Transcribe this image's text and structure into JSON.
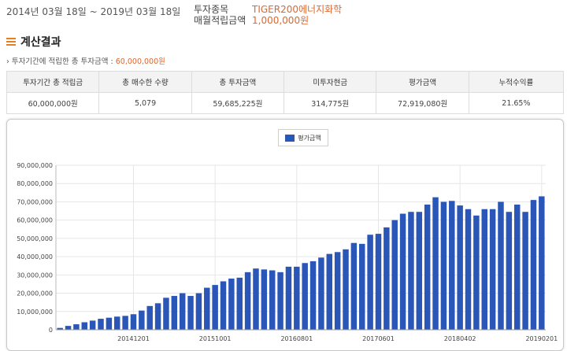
{
  "header": {
    "period": "2014년 03월 18일 ~ 2019년 03월 18일",
    "fund_label": "투자종목",
    "fund_value": "TIGER200에너지화학",
    "monthly_label": "매월적립금액",
    "monthly_value": "1,000,000원"
  },
  "section": {
    "title": "계산결과",
    "total_text": "투자기간에 적립한 총 투자금액 : ",
    "total_value": "60,000,000원"
  },
  "table": {
    "headers": [
      "투자기간 총 적립금",
      "총 매수한 수량",
      "총 투자금액",
      "미투자현금",
      "평가금액",
      "누적수익률"
    ],
    "values": [
      "60,000,000원",
      "5,079",
      "59,685,225원",
      "314,775원",
      "72,919,080원",
      "21.65%"
    ]
  },
  "colors": {
    "bar": "#2a56b8",
    "accent": "#e0662b"
  },
  "chart_data": {
    "type": "bar",
    "legend": "평가금액",
    "legend_position": "top-center",
    "grid": true,
    "ylim": [
      0,
      90000000
    ],
    "yticks": [
      "0",
      "10,000,000",
      "20,000,000",
      "30,000,000",
      "40,000,000",
      "50,000,000",
      "60,000,000",
      "70,000,000",
      "80,000,000",
      "90,000,000"
    ],
    "xticks": [
      {
        "label": "20141201",
        "index": 9
      },
      {
        "label": "20151001",
        "index": 19
      },
      {
        "label": "20160801",
        "index": 29
      },
      {
        "label": "20170601",
        "index": 39
      },
      {
        "label": "20180402",
        "index": 49
      },
      {
        "label": "20190201",
        "index": 59
      }
    ],
    "series": [
      {
        "name": "평가금액",
        "values": [
          1000000,
          2100000,
          3000000,
          4100000,
          5000000,
          6000000,
          6600000,
          7200000,
          7600000,
          8500000,
          10500000,
          13000000,
          14500000,
          17500000,
          18500000,
          20000000,
          18500000,
          20000000,
          23000000,
          24500000,
          26500000,
          28000000,
          28500000,
          31500000,
          33500000,
          33000000,
          32500000,
          31500000,
          34500000,
          34500000,
          36500000,
          37500000,
          39500000,
          41500000,
          42500000,
          44000000,
          47500000,
          47000000,
          52000000,
          52500000,
          56000000,
          60000000,
          63500000,
          64500000,
          64500000,
          68500000,
          72500000,
          70000000,
          70500000,
          68000000,
          66000000,
          62500000,
          66000000,
          66000000,
          70000000,
          64500000,
          68500000,
          64500000,
          71000000,
          73000000
        ]
      }
    ]
  }
}
